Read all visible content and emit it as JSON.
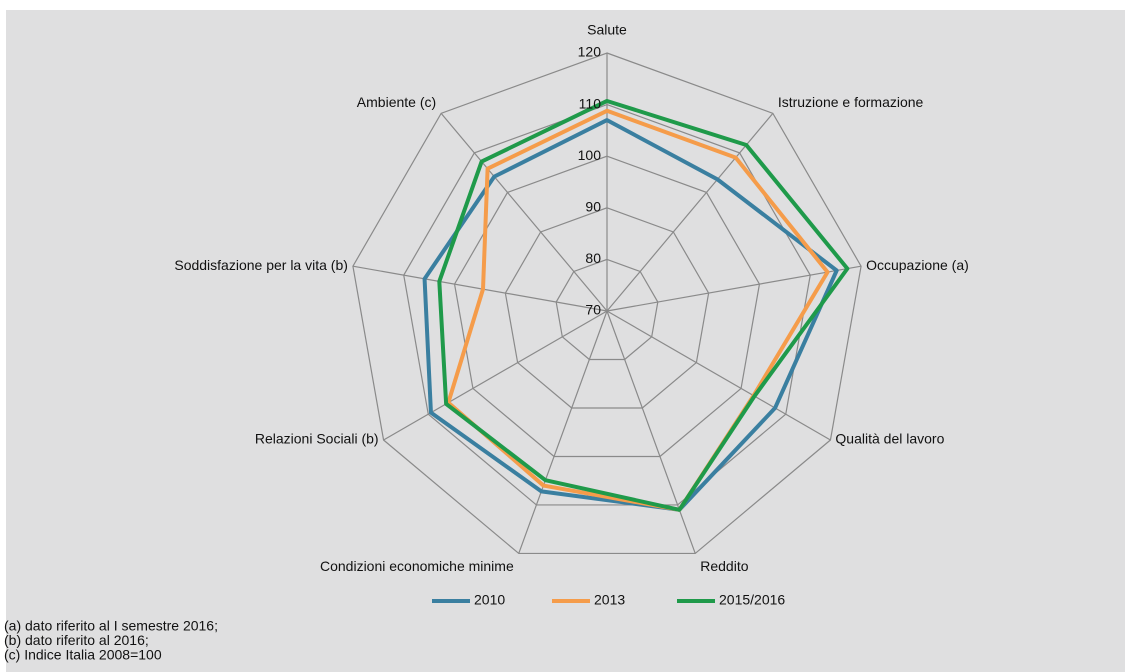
{
  "chart_data": {
    "type": "radar",
    "categories": [
      "Salute",
      "Istruzione e formazione",
      "Occupazione (a)",
      "Qualità del lavoro",
      "Reddito",
      "Condizioni economiche minime",
      "Relazioni Sociali (b)",
      "Soddisfazione per la vita (b)",
      "Ambiente (c)"
    ],
    "series": [
      {
        "name": "2010",
        "color": "#3a7fa0",
        "values": [
          107,
          103.3,
          115.2,
          107.6,
          111,
          107.2,
          109.4,
          105.9,
          104
        ]
      },
      {
        "name": "2013",
        "color": "#f59c4a",
        "values": [
          108.8,
          108.8,
          113.4,
          102.8,
          111,
          106,
          105.5,
          94.4,
          106
        ]
      },
      {
        "name": "2015/2016",
        "color": "#1f9a4a",
        "values": [
          110.7,
          112,
          117.3,
          103,
          111,
          104.9,
          106,
          103,
          107.8
        ]
      }
    ],
    "rlim": [
      70,
      120
    ],
    "rticks": [
      70,
      80,
      90,
      100,
      110,
      120
    ],
    "grid": true,
    "legend": "bottom",
    "notes": [
      "(a) dato riferito al I semestre 2016;",
      "(b) dato riferito al 2016;",
      "(c) Indice Italia 2008=100"
    ]
  }
}
